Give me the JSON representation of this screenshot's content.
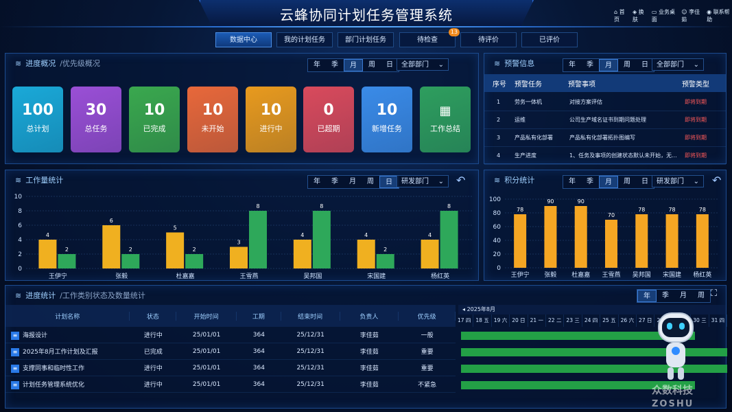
{
  "header": {
    "title": "云蜂协同计划任务管理系统",
    "links": [
      {
        "icon": "home-icon",
        "label": "首页"
      },
      {
        "icon": "skin-icon",
        "label": "换肤"
      },
      {
        "icon": "desktop-icon",
        "label": "业务桌面"
      },
      {
        "icon": "user-icon",
        "label": "李佳茹"
      },
      {
        "icon": "help-icon",
        "label": "联系帮助"
      }
    ]
  },
  "tabs": [
    {
      "label": "数据中心"
    },
    {
      "label": "我的计划任务"
    },
    {
      "label": "部门计划任务"
    },
    {
      "label": "待检查",
      "badge": "13"
    },
    {
      "label": "待评价"
    },
    {
      "label": "已评价"
    }
  ],
  "period": [
    "年",
    "季",
    "月",
    "周",
    "日"
  ],
  "overview": {
    "title": "进度概况",
    "subtitle": "/优先级概况",
    "dept": "全部部门",
    "cards": [
      {
        "num": "100",
        "label": "总计划",
        "color": "#1aa9d8"
      },
      {
        "num": "30",
        "label": "总任务",
        "color": "#9a4fd6"
      },
      {
        "num": "10",
        "label": "已完成",
        "color": "#3aa84e"
      },
      {
        "num": "10",
        "label": "未开始",
        "color": "#e8683a"
      },
      {
        "num": "10",
        "label": "进行中",
        "color": "#e89a1e"
      },
      {
        "num": "0",
        "label": "已超期",
        "color": "#d94a5c"
      },
      {
        "num": "10",
        "label": "新增任务",
        "color": "#3a8be8"
      },
      {
        "num": "",
        "label": "工作总结",
        "color": "#2e9e5e"
      }
    ]
  },
  "warning": {
    "title": "预警信息",
    "dept": "全部部门",
    "headers": [
      "序号",
      "预警任务",
      "预警事项",
      "预警类型"
    ],
    "rows": [
      [
        "1",
        "劳务一体机",
        "对接方案评估",
        "即将到期"
      ],
      [
        "2",
        "运维",
        "公司生产域名证书到期问题处理",
        "即将到期"
      ],
      [
        "3",
        "产品私有化部署",
        "产品私有化部署拓扑图编写",
        "即将到期"
      ],
      [
        "4",
        "生产进度",
        "1、任务及事项的创建状态默认未开始，无...",
        "即将到期"
      ]
    ]
  },
  "workload": {
    "title": "工作量统计",
    "dept": "研发部门",
    "chart_data": {
      "type": "bar",
      "categories": [
        "王伊宁",
        "张毅",
        "杜嘉嘉",
        "王雪燕",
        "吴邦国",
        "宋国建",
        "杨红英"
      ],
      "series": [
        {
          "values": [
            4,
            6,
            5,
            3,
            4,
            4,
            4
          ],
          "color": "#f0b020"
        },
        {
          "values": [
            2,
            2,
            2,
            8,
            8,
            2,
            8
          ],
          "color": "#2ea85a"
        }
      ],
      "ylim": [
        0,
        10
      ],
      "yticks": [
        0,
        2,
        4,
        6,
        8,
        10
      ]
    }
  },
  "score": {
    "title": "积分统计",
    "dept": "研发部门",
    "chart_data": {
      "type": "bar",
      "categories": [
        "王伊宁",
        "张毅",
        "杜嘉嘉",
        "王雪燕",
        "吴邦国",
        "宋国建",
        "杨红英"
      ],
      "values": [
        78,
        90,
        90,
        70,
        78,
        78,
        78
      ],
      "ylim": [
        0,
        100
      ],
      "yticks": [
        0,
        20,
        40,
        60,
        80,
        100
      ]
    }
  },
  "progress": {
    "title": "进度统计",
    "subtitle": "/工作类别状态及数量统计",
    "periods": [
      "年",
      "季",
      "月",
      "周"
    ],
    "headers": [
      "计划名称",
      "状态",
      "开始时间",
      "工期",
      "结束时间",
      "负责人",
      "优先级"
    ],
    "rows": [
      {
        "name": "海报设计",
        "status": "进行中",
        "start": "25/01/01",
        "days": "364",
        "end": "25/12/31",
        "owner": "李佳茹",
        "priority": "一般"
      },
      {
        "name": "2025年8月工作计划及汇报",
        "status": "已完成",
        "start": "25/01/01",
        "days": "364",
        "end": "25/12/31",
        "owner": "李佳茹",
        "priority": "重要"
      },
      {
        "name": "支撑同事和临时性工作",
        "status": "进行中",
        "start": "25/01/01",
        "days": "364",
        "end": "25/12/31",
        "owner": "李佳茹",
        "priority": "重要"
      },
      {
        "name": "计划任务管理系统优化",
        "status": "进行中",
        "start": "25/01/01",
        "days": "364",
        "end": "25/12/31",
        "owner": "李佳茹",
        "priority": "不紧急"
      }
    ],
    "gantt_month": "2025年8月",
    "gantt_days": [
      "17 四",
      "18 五",
      "19 六",
      "20 日",
      "21 一",
      "22 二",
      "23 三",
      "24 四",
      "25 五",
      "26 六",
      "27 日",
      "28 一",
      "29 二",
      "30 三",
      "31 四"
    ]
  },
  "watermark": {
    "cn": "众数科技",
    "en": "ZOSHU"
  }
}
